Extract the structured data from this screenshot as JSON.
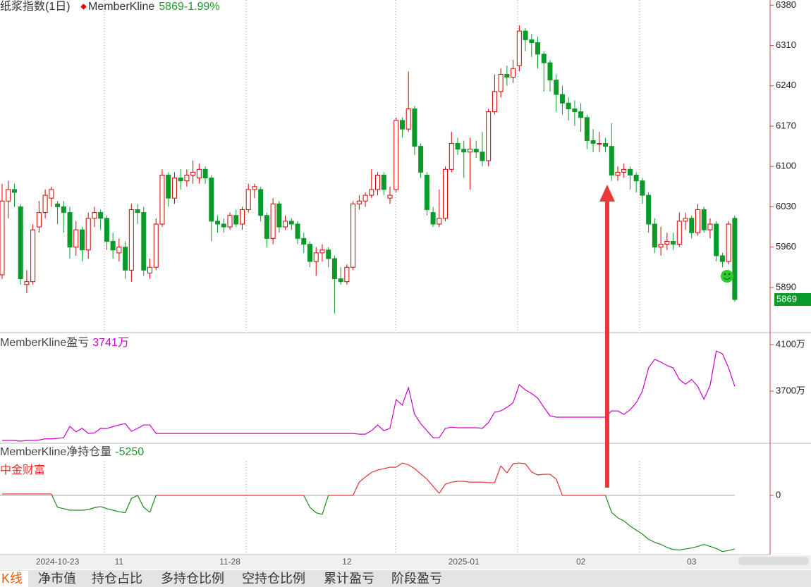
{
  "chart_data": [
    {
      "type": "candlestick",
      "title": "纸浆指数(1日)",
      "indicator": "MemberKline",
      "last_label": "5869-1.99%",
      "up_color": "#d40000",
      "down_color": "#0a9a2a",
      "categories": [
        null,
        null,
        null,
        null,
        null,
        null,
        null,
        null,
        null,
        "2024-10-23",
        null,
        null,
        null,
        null,
        null,
        null,
        null,
        null,
        null,
        "11",
        null,
        null,
        null,
        null,
        null,
        null,
        null,
        null,
        null,
        null,
        null,
        null,
        null,
        null,
        null,
        null,
        null,
        "11-28",
        null,
        null,
        null,
        null,
        null,
        null,
        null,
        null,
        null,
        null,
        null,
        null,
        null,
        null,
        null,
        null,
        null,
        null,
        "12",
        null,
        null,
        null,
        null,
        null,
        null,
        null,
        null,
        null,
        null,
        null,
        null,
        null,
        null,
        null,
        null,
        null,
        null,
        "2025-01",
        null,
        null,
        null,
        null,
        null,
        null,
        null,
        null,
        null,
        null,
        null,
        null,
        null,
        null,
        null,
        null,
        null,
        null,
        "02",
        null,
        null,
        null,
        null,
        null,
        null,
        null,
        null,
        null,
        null,
        null,
        null,
        null,
        null,
        null,
        null,
        null,
        "03",
        null,
        null,
        null,
        null,
        null,
        null,
        null
      ],
      "candles": [
        [
          5912,
          6070,
          5905,
          6040
        ],
        [
          6040,
          6075,
          6010,
          6060
        ],
        [
          6060,
          6070,
          6030,
          6055
        ],
        [
          6030,
          6035,
          5895,
          5905
        ],
        [
          5895,
          5920,
          5880,
          5900
        ],
        [
          5900,
          6000,
          5895,
          5990
        ],
        [
          5995,
          6040,
          5985,
          6020
        ],
        [
          6020,
          6060,
          6010,
          6050
        ],
        [
          6045,
          6065,
          6030,
          6060
        ],
        [
          6035,
          6040,
          6000,
          6030
        ],
        [
          6030,
          6040,
          5985,
          6020
        ],
        [
          6020,
          6030,
          5940,
          5960
        ],
        [
          5960,
          6005,
          5945,
          5990
        ],
        [
          5990,
          5995,
          5935,
          5955
        ],
        [
          5955,
          6020,
          5940,
          6010
        ],
        [
          6010,
          6030,
          5995,
          6020
        ],
        [
          6020,
          6025,
          5990,
          6010
        ],
        [
          6010,
          6015,
          5955,
          5970
        ],
        [
          5970,
          5985,
          5940,
          5955
        ],
        [
          5950,
          5975,
          5935,
          5960
        ],
        [
          5960,
          5970,
          5905,
          5920
        ],
        [
          5920,
          6035,
          5900,
          6025
        ],
        [
          6025,
          6035,
          6000,
          6020
        ],
        [
          6020,
          6030,
          5910,
          5920
        ],
        [
          5915,
          5940,
          5905,
          5925
        ],
        [
          5925,
          6010,
          5920,
          6000
        ],
        [
          6000,
          6095,
          5995,
          6085
        ],
        [
          6085,
          6090,
          6030,
          6045
        ],
        [
          6045,
          6090,
          6035,
          6080
        ],
        [
          6080,
          6095,
          6060,
          6075
        ],
        [
          6075,
          6095,
          6065,
          6085
        ],
        [
          6085,
          6110,
          6070,
          6090
        ],
        [
          6080,
          6105,
          6070,
          6095
        ],
        [
          6095,
          6100,
          6070,
          6080
        ],
        [
          6080,
          6085,
          5970,
          6005
        ],
        [
          6005,
          6015,
          5985,
          6000
        ],
        [
          6000,
          6010,
          5985,
          5995
        ],
        [
          5995,
          6020,
          5990,
          6015
        ],
        [
          6015,
          6025,
          5995,
          6000
        ],
        [
          6000,
          6030,
          5990,
          6025
        ],
        [
          6025,
          6070,
          6020,
          6060
        ],
        [
          6060,
          6070,
          6045,
          6065
        ],
        [
          6060,
          6065,
          6005,
          6015
        ],
        [
          6015,
          6020,
          5960,
          5975
        ],
        [
          5975,
          6045,
          5965,
          6035
        ],
        [
          6035,
          6040,
          5985,
          5995
        ],
        [
          5995,
          6015,
          5990,
          6005
        ],
        [
          6005,
          6010,
          5990,
          6000
        ],
        [
          6000,
          6005,
          5965,
          5975
        ],
        [
          5975,
          5985,
          5950,
          5965
        ],
        [
          5965,
          5970,
          5925,
          5935
        ],
        [
          5935,
          5960,
          5910,
          5950
        ],
        [
          5950,
          5965,
          5935,
          5955
        ],
        [
          5955,
          5960,
          5925,
          5940
        ],
        [
          5940,
          5945,
          5845,
          5905
        ],
        [
          5905,
          5925,
          5895,
          5900
        ],
        [
          5900,
          5930,
          5895,
          5925
        ],
        [
          5925,
          6040,
          5920,
          6035
        ],
        [
          6035,
          6050,
          6025,
          6040
        ],
        [
          6040,
          6055,
          6030,
          6050
        ],
        [
          6050,
          6095,
          6045,
          6060
        ],
        [
          6060,
          6090,
          6050,
          6085
        ],
        [
          6085,
          6090,
          6050,
          6060
        ],
        [
          6045,
          6065,
          6035,
          6050
        ],
        [
          6060,
          6185,
          6055,
          6180
        ],
        [
          6180,
          6185,
          6150,
          6165
        ],
        [
          6165,
          6265,
          6160,
          6200
        ],
        [
          6200,
          6205,
          6120,
          6135
        ],
        [
          6135,
          6140,
          6080,
          6090
        ],
        [
          6085,
          6090,
          6015,
          6025
        ],
        [
          6020,
          6030,
          5995,
          6000
        ],
        [
          6000,
          6060,
          5995,
          6010
        ],
        [
          6010,
          6100,
          6005,
          6095
        ],
        [
          6095,
          6160,
          6090,
          6140
        ],
        [
          6140,
          6150,
          6120,
          6130
        ],
        [
          6130,
          6145,
          6080,
          6125
        ],
        [
          6125,
          6150,
          6060,
          6130
        ],
        [
          6130,
          6145,
          6115,
          6125
        ],
        [
          6125,
          6160,
          6100,
          6110
        ],
        [
          6110,
          6200,
          6100,
          6195
        ],
        [
          6195,
          6260,
          6190,
          6230
        ],
        [
          6230,
          6270,
          6220,
          6260
        ],
        [
          6260,
          6275,
          6240,
          6255
        ],
        [
          6255,
          6285,
          6245,
          6270
        ],
        [
          6275,
          6345,
          6265,
          6335
        ],
        [
          6335,
          6340,
          6300,
          6320
        ],
        [
          6320,
          6330,
          6290,
          6315
        ],
        [
          6315,
          6325,
          6270,
          6295
        ],
        [
          6295,
          6300,
          6230,
          6280
        ],
        [
          6280,
          6285,
          6230,
          6250
        ],
        [
          6250,
          6260,
          6195,
          6225
        ],
        [
          6225,
          6240,
          6190,
          6210
        ],
        [
          6210,
          6220,
          6180,
          6200
        ],
        [
          6200,
          6215,
          6170,
          6195
        ],
        [
          6195,
          6210,
          6160,
          6185
        ],
        [
          6185,
          6190,
          6130,
          6145
        ],
        [
          6145,
          6165,
          6125,
          6140
        ],
        [
          6140,
          6160,
          6125,
          6140
        ],
        [
          6140,
          6150,
          6125,
          6135
        ],
        [
          6135,
          6175,
          6075,
          6085
        ],
        [
          6085,
          6100,
          6075,
          6090
        ],
        [
          6090,
          6105,
          6080,
          6095
        ],
        [
          6095,
          6100,
          6060,
          6085
        ],
        [
          6085,
          6090,
          6055,
          6075
        ],
        [
          6075,
          6080,
          6035,
          6050
        ],
        [
          6050,
          6055,
          5985,
          6000
        ],
        [
          6000,
          6010,
          5950,
          5960
        ],
        [
          5960,
          5995,
          5945,
          5965
        ],
        [
          5965,
          5985,
          5955,
          5970
        ],
        [
          5970,
          5985,
          5955,
          5965
        ],
        [
          5965,
          6020,
          5960,
          6005
        ],
        [
          6005,
          6020,
          5990,
          6010
        ],
        [
          6010,
          6015,
          5975,
          5985
        ],
        [
          5985,
          6035,
          5980,
          6025
        ],
        [
          6025,
          6030,
          5985,
          5990
        ],
        [
          5990,
          6010,
          5975,
          6000
        ],
        [
          6000,
          6005,
          5935,
          5945
        ],
        [
          5945,
          5950,
          5925,
          5935
        ],
        [
          5935,
          6005,
          5930,
          6000
        ],
        [
          6010,
          6015,
          5865,
          5869
        ]
      ],
      "ylim": [
        5814,
        6389
      ],
      "yticks": [
        6380,
        6310,
        6240,
        6170,
        6100,
        6030,
        5960,
        5890
      ]
    },
    {
      "type": "line",
      "title": "MemberKline盈亏",
      "value_label": "3741万",
      "color": "#cc00cc",
      "values": [
        3276,
        3276,
        3276,
        3270,
        3276,
        3276,
        3280,
        3290,
        3290,
        3294,
        3300,
        3397,
        3350,
        3380,
        3336,
        3340,
        3380,
        3379,
        3395,
        3410,
        3421,
        3355,
        3380,
        3409,
        3409,
        3336,
        3336,
        3336,
        3336,
        3336,
        3336,
        3336,
        3336,
        3336,
        3336,
        3336,
        3336,
        3336,
        3336,
        3336,
        3336,
        3336,
        3336,
        3336,
        3336,
        3336,
        3336,
        3336,
        3336,
        3336,
        3336,
        3336,
        3336,
        3336,
        3336,
        3336,
        3336,
        3336,
        3330,
        3330,
        3360,
        3409,
        3360,
        3380,
        3627,
        3580,
        3730,
        3500,
        3420,
        3360,
        3300,
        3300,
        3380,
        3390,
        3385,
        3385,
        3385,
        3385,
        3380,
        3430,
        3520,
        3530,
        3560,
        3600,
        3755,
        3710,
        3680,
        3640,
        3560,
        3488,
        3476,
        3476,
        3476,
        3476,
        3476,
        3476,
        3476,
        3476,
        3476,
        3530,
        3530,
        3500,
        3540,
        3600,
        3700,
        3900,
        3973,
        3950,
        3920,
        3900,
        3800,
        3760,
        3800,
        3740,
        3630,
        3750,
        4045,
        4020,
        3900,
        3741
      ],
      "ylim": [
        3258,
        4197
      ],
      "yticks": [
        {
          "value": 4100,
          "label": "4100万"
        },
        {
          "value": 3700,
          "label": "3700万"
        }
      ]
    },
    {
      "type": "line",
      "title": "MemberKline净持仓量",
      "value_label": "-5250",
      "subtitle": "中金财富",
      "positive_color": "#e03030",
      "negative_color": "#1a8a1a",
      "grid": true,
      "values": [
        140,
        140,
        140,
        140,
        140,
        140,
        140,
        140,
        140,
        -1170,
        -1300,
        -1450,
        -1450,
        -1450,
        -1400,
        -1200,
        -1100,
        -1300,
        -1450,
        -1600,
        -1700,
        -300,
        0,
        -1170,
        -1660,
        0,
        0,
        0,
        0,
        0,
        0,
        0,
        0,
        0,
        0,
        0,
        0,
        0,
        0,
        0,
        0,
        0,
        0,
        0,
        0,
        0,
        0,
        0,
        0,
        0,
        -1170,
        -1700,
        -1860,
        0,
        0,
        0,
        0,
        0,
        1300,
        1800,
        2250,
        2480,
        2620,
        2760,
        2760,
        3170,
        3000,
        2620,
        2100,
        1590,
        900,
        200,
        1100,
        1300,
        1380,
        1380,
        1300,
        1300,
        1300,
        1240,
        1240,
        2900,
        2200,
        3100,
        3170,
        3100,
        2300,
        2000,
        2070,
        2070,
        1600,
        0,
        0,
        0,
        0,
        0,
        0,
        0,
        0,
        -1660,
        -2200,
        -2500,
        -3000,
        -3400,
        -3800,
        -4300,
        -4600,
        -4800,
        -5100,
        -5300,
        -5350,
        -5250,
        -5150,
        -5000,
        -4800,
        -5000,
        -5200,
        -5500,
        -5400,
        -5250
      ],
      "ylim": [
        -5800,
        5040
      ],
      "yticks": [
        0
      ]
    }
  ],
  "tabs": [
    "K线",
    "净市值",
    "持仓占比",
    "多持仓比例",
    "空持仓比例",
    "累计盈亏",
    "阶段盈亏"
  ]
}
